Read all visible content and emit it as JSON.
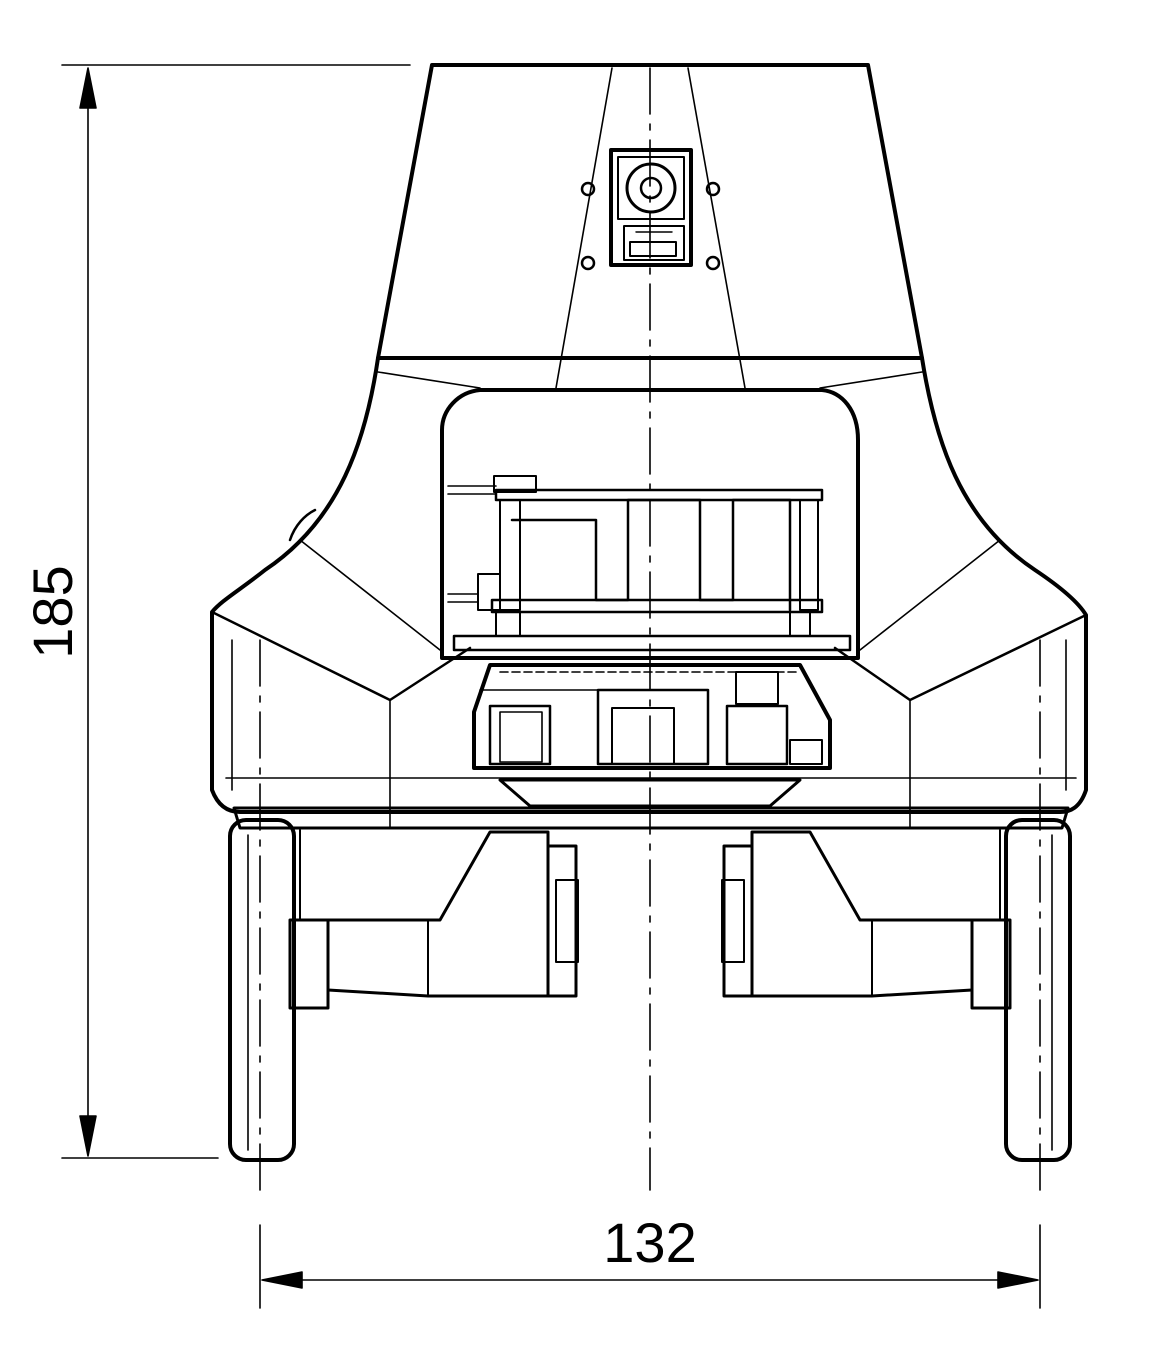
{
  "drawing": {
    "line_color": "#000000",
    "background": "#ffffff",
    "dimensions": {
      "height_label": "185",
      "width_label": "132"
    }
  }
}
